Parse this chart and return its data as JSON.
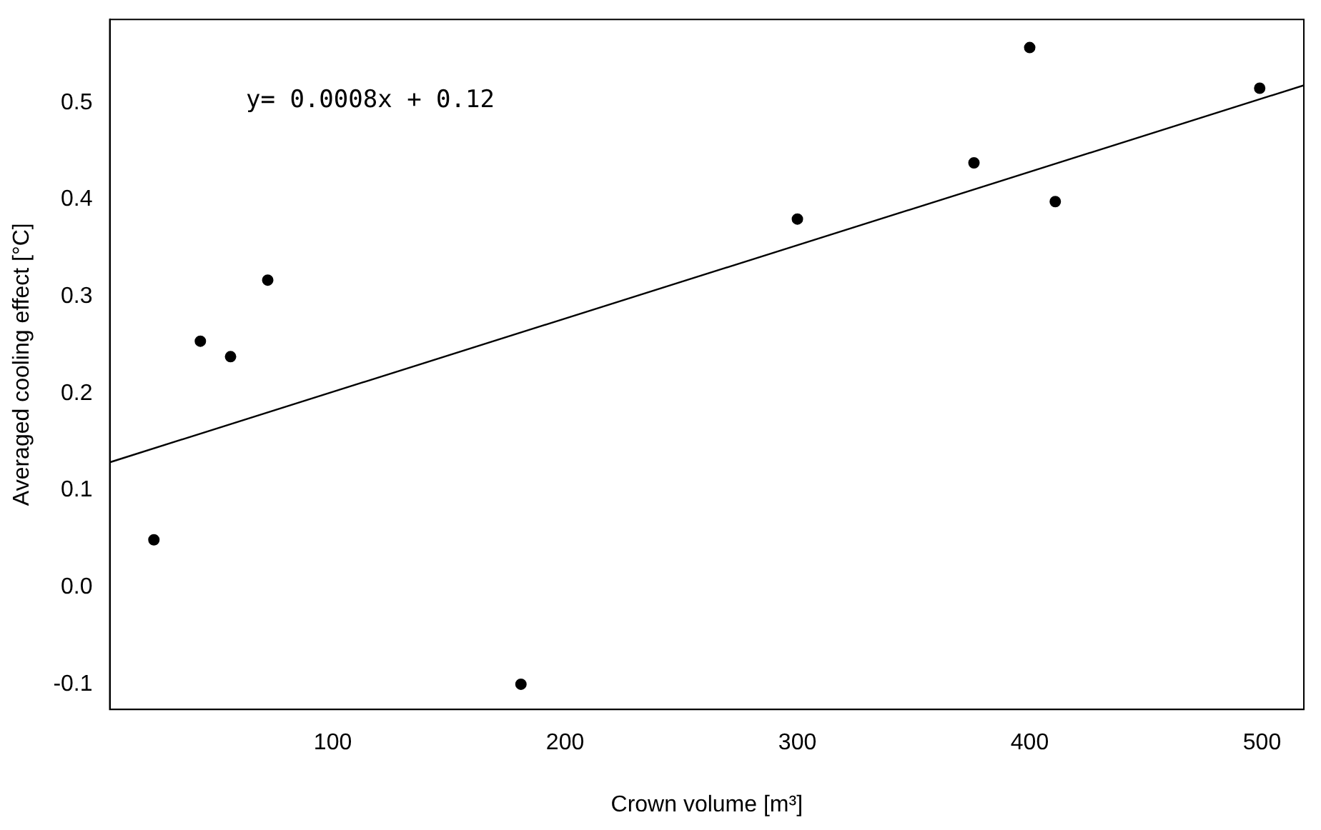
{
  "chart_data": {
    "type": "scatter",
    "xlabel": "Crown volume [m³]",
    "ylabel": "Averaged cooling effect [°C]",
    "xlim": [
      4,
      518
    ],
    "xticks": [
      100,
      200,
      300,
      400,
      500
    ],
    "ylim": [
      -0.126,
      0.586
    ],
    "yticks": [
      -0.1,
      {
        "value": 0,
        "label": "0.0"
      },
      0.1,
      0.2,
      0.3,
      0.4,
      0.5
    ],
    "grid": false,
    "legend": false,
    "marker": "circle",
    "series": [
      {
        "color": "#000000",
        "x": [
          23,
          43,
          56,
          72,
          181,
          300,
          376,
          400,
          411,
          499
        ],
        "values": [
          0.049,
          0.254,
          0.238,
          0.317,
          -0.1,
          0.38,
          0.438,
          0.557,
          0.398,
          0.515
        ]
      },
      {
        "type": "line",
        "color": "#000000",
        "x": [
          4,
          518
        ],
        "values": [
          0.129,
          0.518
        ],
        "marker": "none",
        "line_style": "solid"
      }
    ],
    "annotations": [
      "y= 0.0008x + 0.12"
    ]
  }
}
